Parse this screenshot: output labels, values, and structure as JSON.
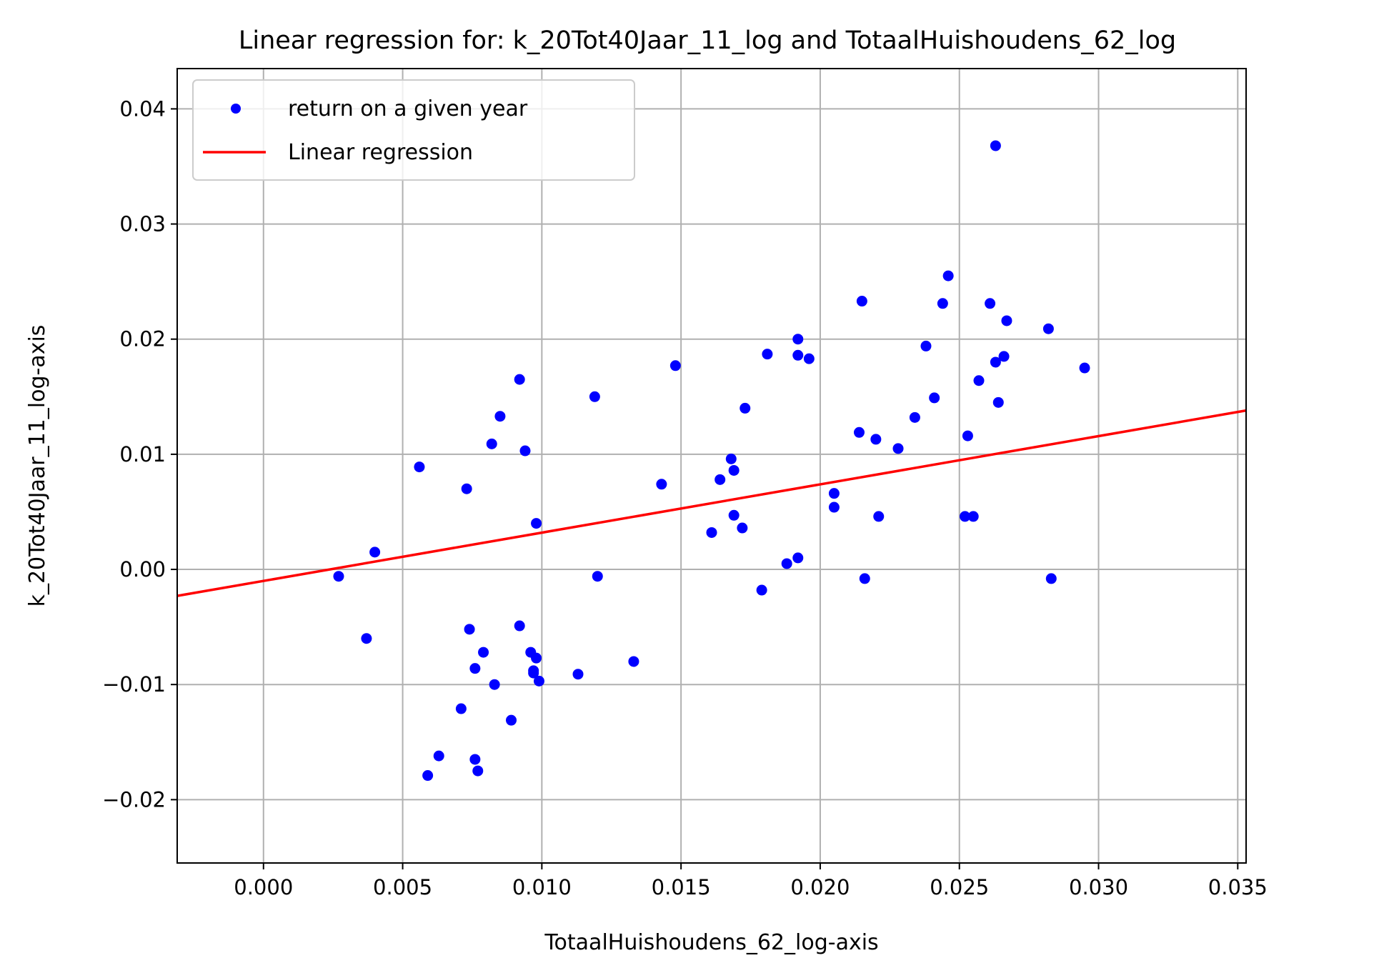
{
  "chart_data": {
    "type": "scatter",
    "title": "Linear regression for: k_20Tot40Jaar_11_log and TotaalHuishoudens_62_log",
    "xlabel": "TotaalHuishoudens_62_log-axis",
    "ylabel": "k_20Tot40Jaar_11_log-axis",
    "xlim": [
      -0.0031,
      0.0353
    ],
    "ylim": [
      -0.0255,
      0.0435
    ],
    "xticks": [
      0.0,
      0.005,
      0.01,
      0.015,
      0.02,
      0.025,
      0.03,
      0.035
    ],
    "xtick_labels": [
      "0.000",
      "0.005",
      "0.010",
      "0.015",
      "0.020",
      "0.025",
      "0.030",
      "0.035"
    ],
    "yticks": [
      -0.02,
      -0.01,
      0.0,
      0.01,
      0.02,
      0.03,
      0.04
    ],
    "ytick_labels": [
      "−0.02",
      "−0.01",
      "0.00",
      "0.01",
      "0.02",
      "0.03",
      "0.04"
    ],
    "grid": true,
    "legend": {
      "position": "top-left",
      "entries": [
        "return on a given year",
        "Linear regression"
      ]
    },
    "colors": {
      "points": "#0000ff",
      "line": "#ff0000",
      "grid": "#b0b0b0"
    },
    "series": [
      {
        "name": "return on a given year",
        "type": "scatter",
        "points": [
          [
            0.0027,
            -0.0006
          ],
          [
            0.0037,
            -0.006
          ],
          [
            0.004,
            0.0015
          ],
          [
            0.0056,
            0.0089
          ],
          [
            0.0059,
            -0.0179
          ],
          [
            0.0063,
            -0.0162
          ],
          [
            0.0071,
            -0.0121
          ],
          [
            0.0073,
            0.007
          ],
          [
            0.0074,
            -0.0052
          ],
          [
            0.0076,
            -0.0086
          ],
          [
            0.0076,
            -0.0165
          ],
          [
            0.0077,
            -0.0175
          ],
          [
            0.0079,
            -0.0072
          ],
          [
            0.0082,
            0.0109
          ],
          [
            0.0083,
            -0.01
          ],
          [
            0.0085,
            0.0133
          ],
          [
            0.0089,
            -0.0131
          ],
          [
            0.0092,
            0.0165
          ],
          [
            0.0092,
            -0.0049
          ],
          [
            0.0094,
            0.0103
          ],
          [
            0.0096,
            -0.0072
          ],
          [
            0.0097,
            -0.009
          ],
          [
            0.0097,
            -0.0088
          ],
          [
            0.0098,
            -0.0077
          ],
          [
            0.0098,
            0.004
          ],
          [
            0.0099,
            -0.0097
          ],
          [
            0.0113,
            -0.0091
          ],
          [
            0.0119,
            0.015
          ],
          [
            0.012,
            -0.0006
          ],
          [
            0.0133,
            -0.008
          ],
          [
            0.0143,
            0.0074
          ],
          [
            0.0148,
            0.0177
          ],
          [
            0.0161,
            0.0032
          ],
          [
            0.0164,
            0.0078
          ],
          [
            0.0168,
            0.0096
          ],
          [
            0.0169,
            0.0086
          ],
          [
            0.0169,
            0.0047
          ],
          [
            0.0172,
            0.0036
          ],
          [
            0.0173,
            0.014
          ],
          [
            0.0179,
            -0.0018
          ],
          [
            0.0181,
            0.0187
          ],
          [
            0.0188,
            0.0005
          ],
          [
            0.0192,
            0.001
          ],
          [
            0.0192,
            0.02
          ],
          [
            0.0192,
            0.0186
          ],
          [
            0.0196,
            0.0183
          ],
          [
            0.0205,
            0.0066
          ],
          [
            0.0205,
            0.0054
          ],
          [
            0.0214,
            0.0119
          ],
          [
            0.0215,
            0.0233
          ],
          [
            0.0216,
            -0.0008
          ],
          [
            0.022,
            0.0113
          ],
          [
            0.0221,
            0.0046
          ],
          [
            0.0228,
            0.0105
          ],
          [
            0.0234,
            0.0132
          ],
          [
            0.0238,
            0.0194
          ],
          [
            0.0241,
            0.0149
          ],
          [
            0.0244,
            0.0231
          ],
          [
            0.0246,
            0.0255
          ],
          [
            0.0252,
            0.0046
          ],
          [
            0.0253,
            0.0116
          ],
          [
            0.0255,
            0.0046
          ],
          [
            0.0257,
            0.0164
          ],
          [
            0.0261,
            0.0231
          ],
          [
            0.0263,
            0.018
          ],
          [
            0.0263,
            0.0368
          ],
          [
            0.0264,
            0.0145
          ],
          [
            0.0266,
            0.0185
          ],
          [
            0.0267,
            0.0216
          ],
          [
            0.0282,
            0.0209
          ],
          [
            0.0283,
            -0.0008
          ],
          [
            0.0295,
            0.0175
          ]
        ]
      },
      {
        "name": "Linear regression",
        "type": "line",
        "points": [
          [
            -0.0031,
            -0.0023
          ],
          [
            0.0353,
            0.0138
          ]
        ]
      }
    ]
  }
}
